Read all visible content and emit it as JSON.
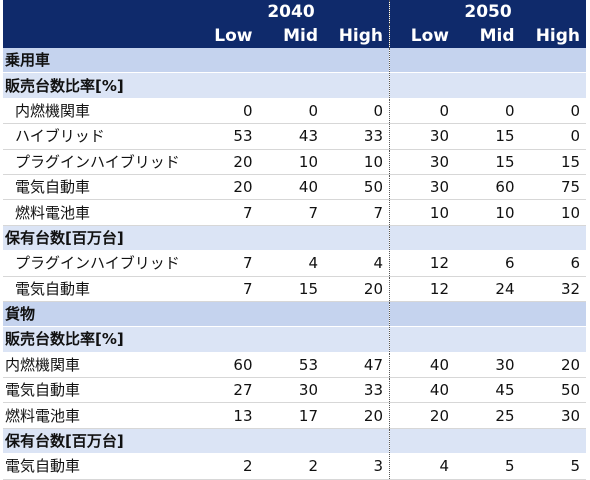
{
  "years": [
    "2040",
    "2050"
  ],
  "scenarios": [
    "Low",
    "Mid",
    "High",
    "Low",
    "Mid",
    "High"
  ],
  "sections": [
    {
      "title": "乗用車",
      "blocks": [
        {
          "title": "販売台数比率[%]",
          "rows": [
            {
              "label": "内燃機関車",
              "values": [
                "0",
                "0",
                "0",
                "0",
                "0",
                "0"
              ]
            },
            {
              "label": "ハイブリッド",
              "values": [
                "53",
                "43",
                "33",
                "30",
                "15",
                "0"
              ]
            },
            {
              "label": "プラグインハイブリッド",
              "values": [
                "20",
                "10",
                "10",
                "30",
                "15",
                "15"
              ]
            },
            {
              "label": "電気自動車",
              "values": [
                "20",
                "40",
                "50",
                "30",
                "60",
                "75"
              ]
            },
            {
              "label": "燃料電池車",
              "values": [
                "7",
                "7",
                "7",
                "10",
                "10",
                "10"
              ]
            }
          ]
        },
        {
          "title": "保有台数[百万台]",
          "rows": [
            {
              "label": "プラグインハイブリッド",
              "values": [
                "7",
                "4",
                "4",
                "12",
                "6",
                "6"
              ]
            },
            {
              "label": "電気自動車",
              "values": [
                "7",
                "15",
                "20",
                "12",
                "24",
                "32"
              ]
            }
          ]
        }
      ]
    },
    {
      "title": "貨物",
      "blocks": [
        {
          "title": "販売台数比率[%]",
          "rows": [
            {
              "label": "内燃機関車",
              "values": [
                "60",
                "53",
                "47",
                "40",
                "30",
                "20"
              ]
            },
            {
              "label": "電気自動車",
              "values": [
                "27",
                "30",
                "33",
                "40",
                "45",
                "50"
              ]
            },
            {
              "label": "燃料電池車",
              "values": [
                "13",
                "17",
                "20",
                "20",
                "25",
                "30"
              ]
            }
          ]
        },
        {
          "title": "保有台数[百万台]",
          "rows": [
            {
              "label": "電気自動車",
              "values": [
                "2",
                "2",
                "3",
                "4",
                "5",
                "5"
              ]
            }
          ]
        }
      ]
    }
  ]
}
